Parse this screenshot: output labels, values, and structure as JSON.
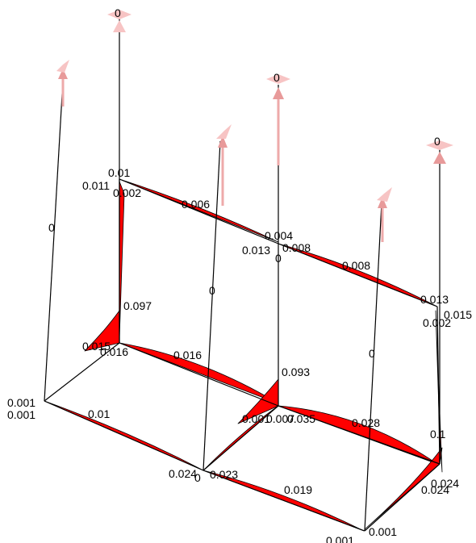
{
  "diagram": {
    "colors": {
      "member": "#000000",
      "moment_fill": "#ff0000",
      "load_arrow": "#e89a9a",
      "load_arrow_light": "#f7c4c4",
      "label": "#000000"
    },
    "icons": [
      "load-arrow-icon",
      "rotation-glyph-icon"
    ],
    "labels": [
      "0",
      "0",
      "0",
      "0",
      "0.01",
      "0.011",
      "0.002",
      "0.006",
      "0.004",
      "0.013",
      "0.008",
      "0",
      "0.008",
      "0.013",
      "0.015",
      "0.002",
      "0",
      "0.097",
      "0",
      "0.015",
      "0.016",
      "0.016",
      "0.001",
      "0.001",
      "0.01",
      "0.093",
      "0.001",
      "0.007",
      "0.035",
      "0",
      "0.028",
      "0.1",
      "0.024",
      "0",
      "0.023",
      "0.019",
      "0.024",
      "0.024",
      "0.001",
      "0.001"
    ]
  }
}
